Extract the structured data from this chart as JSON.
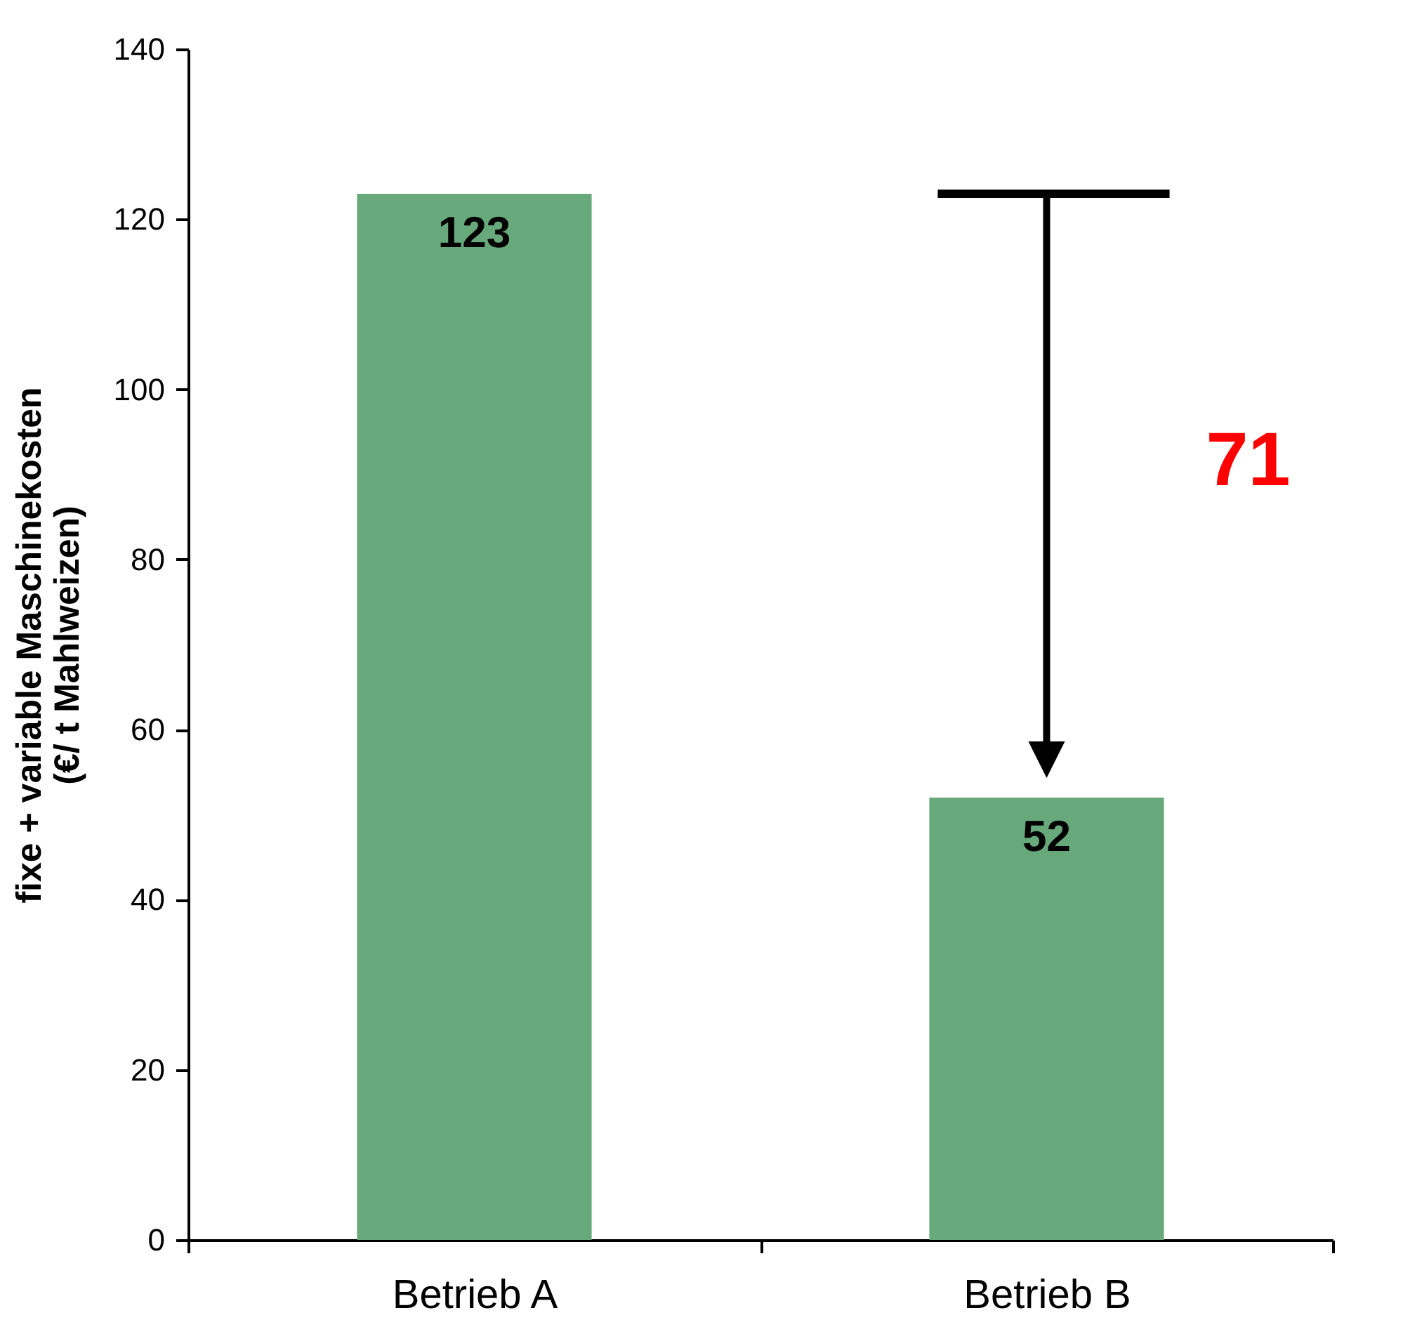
{
  "chart_data": {
    "type": "bar",
    "ylabel": "fixe + variable Maschinekosten\n(€/ t Mahlweizen)",
    "categories": [
      "Betrieb A",
      "Betrieb B"
    ],
    "values": [
      123,
      52
    ],
    "color": "#67a97b",
    "ylim": [
      0,
      140
    ],
    "yticks": [
      0,
      20,
      40,
      60,
      80,
      100,
      120,
      140
    ],
    "data_labels": true,
    "grid": false,
    "annotations": [
      "71"
    ]
  }
}
